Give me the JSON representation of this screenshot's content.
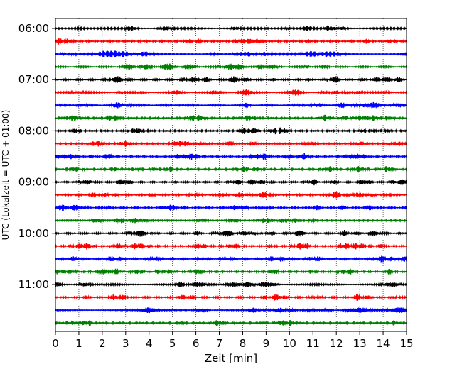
{
  "chart_data": {
    "type": "line",
    "title": "",
    "xlabel": "Zeit  [min]",
    "ylabel": "UTC (Lokalzeit = UTC + 01:00)",
    "xlim": [
      0,
      15
    ],
    "x_ticks": [
      "0",
      "1",
      "2",
      "3",
      "4",
      "5",
      "6",
      "7",
      "8",
      "9",
      "10",
      "11",
      "12",
      "13",
      "14",
      "15"
    ],
    "y_ticks": [
      "06:00",
      "07:00",
      "08:00",
      "09:00",
      "10:00",
      "11:00"
    ],
    "grid": "vertical dotted",
    "trace_interval_min": 15,
    "trace_colors": [
      "#000000",
      "#ff0000",
      "#0000ff",
      "#008000"
    ],
    "traces": [
      {
        "start": "06:00",
        "color": "#000000"
      },
      {
        "start": "06:15",
        "color": "#ff0000"
      },
      {
        "start": "06:30",
        "color": "#0000ff"
      },
      {
        "start": "06:45",
        "color": "#008000"
      },
      {
        "start": "07:00",
        "color": "#000000"
      },
      {
        "start": "07:15",
        "color": "#ff0000"
      },
      {
        "start": "07:30",
        "color": "#0000ff"
      },
      {
        "start": "07:45",
        "color": "#008000"
      },
      {
        "start": "08:00",
        "color": "#000000"
      },
      {
        "start": "08:15",
        "color": "#ff0000"
      },
      {
        "start": "08:30",
        "color": "#0000ff"
      },
      {
        "start": "08:45",
        "color": "#008000"
      },
      {
        "start": "09:00",
        "color": "#000000"
      },
      {
        "start": "09:15",
        "color": "#ff0000"
      },
      {
        "start": "09:30",
        "color": "#0000ff"
      },
      {
        "start": "09:45",
        "color": "#008000"
      },
      {
        "start": "10:00",
        "color": "#000000"
      },
      {
        "start": "10:15",
        "color": "#ff0000"
      },
      {
        "start": "10:30",
        "color": "#0000ff"
      },
      {
        "start": "10:45",
        "color": "#008000"
      },
      {
        "start": "11:00",
        "color": "#000000"
      },
      {
        "start": "11:15",
        "color": "#ff0000"
      },
      {
        "start": "11:30",
        "color": "#0000ff"
      },
      {
        "start": "11:45",
        "color": "#008000"
      }
    ]
  }
}
